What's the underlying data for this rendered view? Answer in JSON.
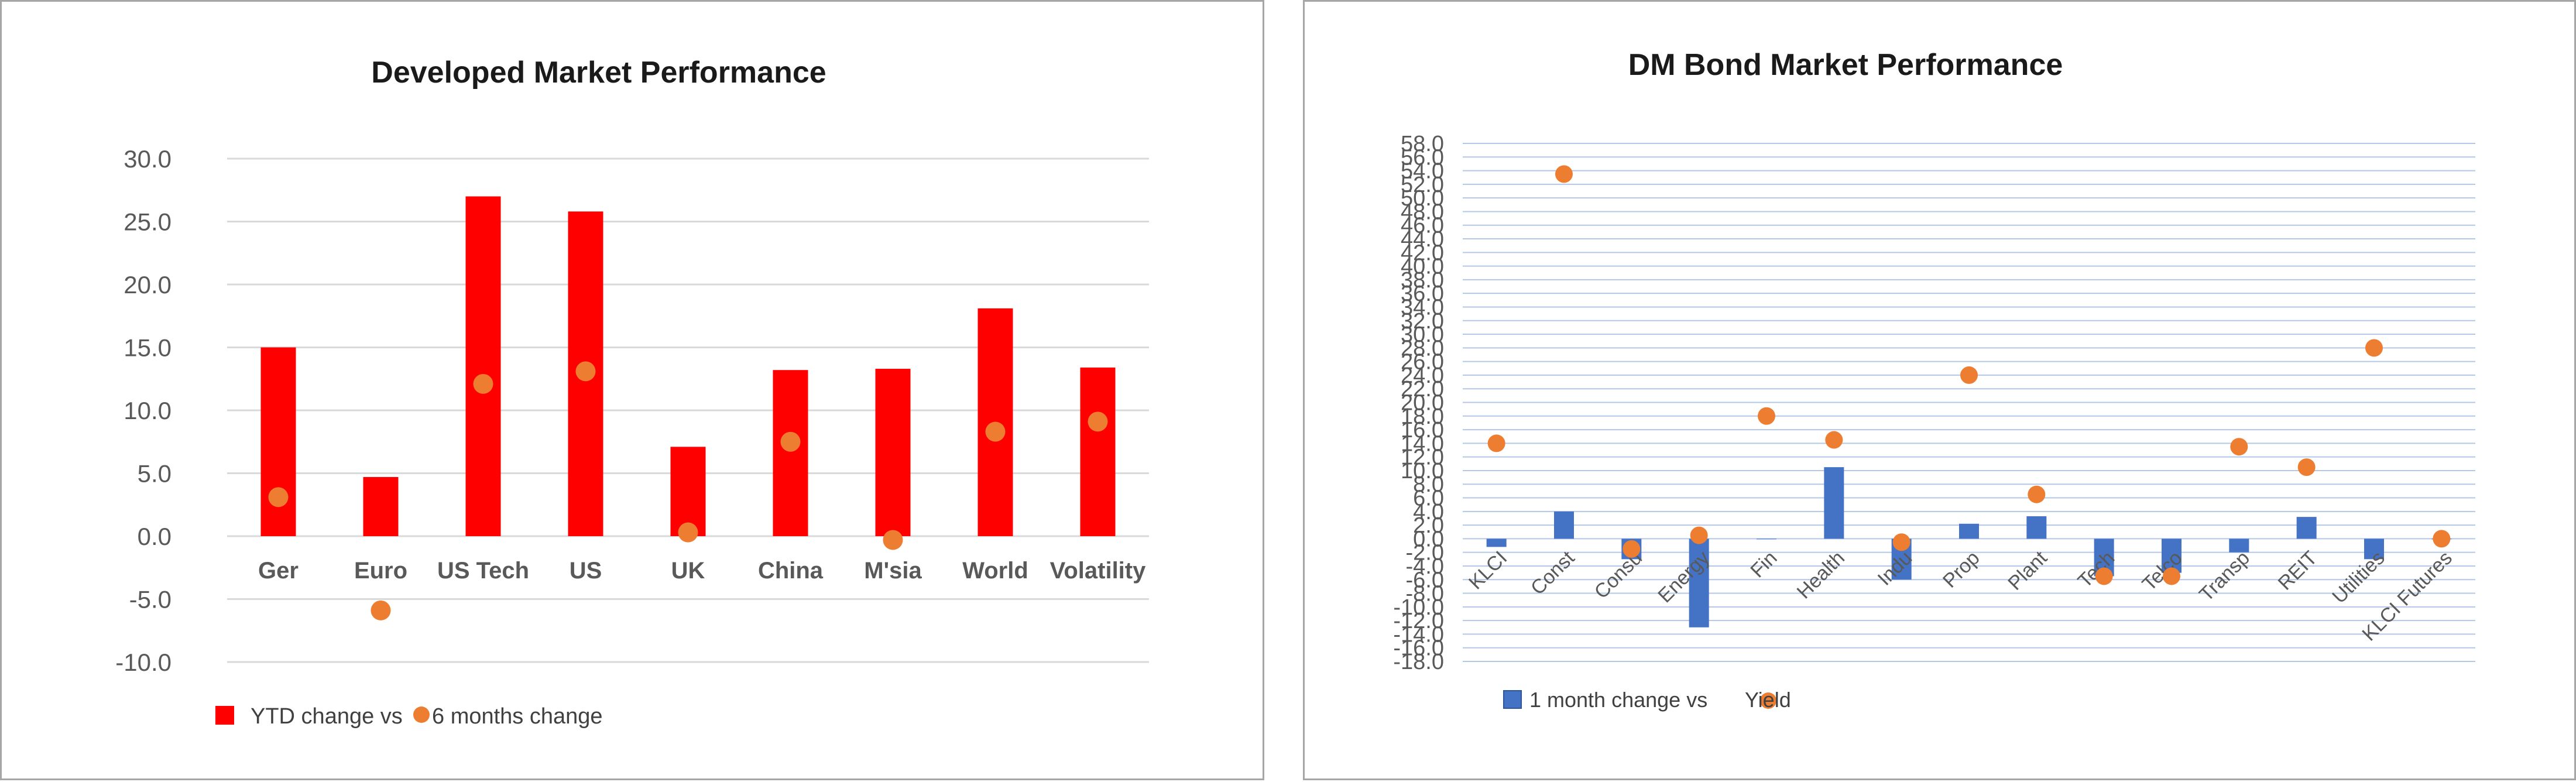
{
  "chart_data": [
    {
      "type": "bar",
      "title": "Developed Market Performance",
      "categories": [
        "Ger",
        "Euro",
        "US Tech",
        "US",
        "UK",
        "China",
        "M'sia",
        "World",
        "Volatility"
      ],
      "series": [
        {
          "name": "YTD change vs",
          "kind": "bar",
          "color": "#ff0000",
          "values": [
            15.0,
            4.7,
            27.0,
            25.8,
            7.1,
            13.2,
            13.3,
            18.1,
            13.4
          ]
        },
        {
          "name": "6 months change",
          "kind": "scatter",
          "color": "#ed7d31",
          "values": [
            3.1,
            -5.9,
            12.1,
            13.1,
            0.3,
            7.5,
            -0.3,
            8.3,
            9.1
          ]
        }
      ],
      "ylim": [
        -10,
        30
      ],
      "yticks": [
        "30.0",
        "25.0",
        "20.0",
        "15.0",
        "10.0",
        "5.0",
        "0.0",
        "-5.0",
        "-10.0"
      ],
      "ytick_values": [
        30,
        25,
        20,
        15,
        10,
        5,
        0,
        -5,
        -10
      ],
      "grid": true,
      "legend": "bottom-left"
    },
    {
      "type": "bar",
      "title": "DM Bond Market Performance",
      "categories": [
        "KLCI",
        "Const",
        "Consu",
        "Energy",
        "Fin",
        "Health",
        "Indu",
        "Prop",
        "Plant",
        "Tech",
        "Telco",
        "Transp",
        "REIT",
        "Utilities",
        "KLCI Futures"
      ],
      "series": [
        {
          "name": "1 month change vs",
          "kind": "bar",
          "color": "#4472c4",
          "values": [
            -1.2,
            4.0,
            -3.0,
            -13.0,
            0.0,
            10.5,
            -6.0,
            2.2,
            3.3,
            -5.5,
            -5.0,
            -2.0,
            3.2,
            -3.0,
            0.0
          ]
        },
        {
          "name": "Yield",
          "kind": "scatter",
          "color": "#ed7d31",
          "values": [
            14.0,
            53.5,
            -1.5,
            0.5,
            18.0,
            14.5,
            -0.5,
            24.0,
            6.5,
            -5.5,
            -5.5,
            13.5,
            10.5,
            28.0,
            0.0
          ]
        }
      ],
      "ylim": [
        -18,
        58
      ],
      "yticks": [
        "58.0",
        "56.0",
        "54.0",
        "52.0",
        "50.0",
        "48.0",
        "46.0",
        "44.0",
        "42.0",
        "40.0",
        "38.0",
        "36.0",
        "34.0",
        "32.0",
        "30.0",
        "28.0",
        "26.0",
        "24.0",
        "22.0",
        "20.0",
        "18.0",
        "16.0",
        "14.0",
        "12.0",
        "10.0",
        "8.0",
        "6.0",
        "4.0",
        "2.0",
        "0.0",
        "-2.0",
        "-4.0",
        "-6.0",
        "-8.0",
        "-10.0",
        "-12.0",
        "-14.0",
        "-16.0",
        "-18.0"
      ],
      "ytick_values": [
        58,
        56,
        54,
        52,
        50,
        48,
        46,
        44,
        42,
        40,
        38,
        36,
        34,
        32,
        30,
        28,
        26,
        24,
        22,
        20,
        18,
        16,
        14,
        12,
        10,
        8,
        6,
        4,
        2,
        0,
        -2,
        -4,
        -6,
        -8,
        -10,
        -12,
        -14,
        -16,
        -18
      ],
      "grid": true,
      "legend": "bottom-left"
    }
  ]
}
